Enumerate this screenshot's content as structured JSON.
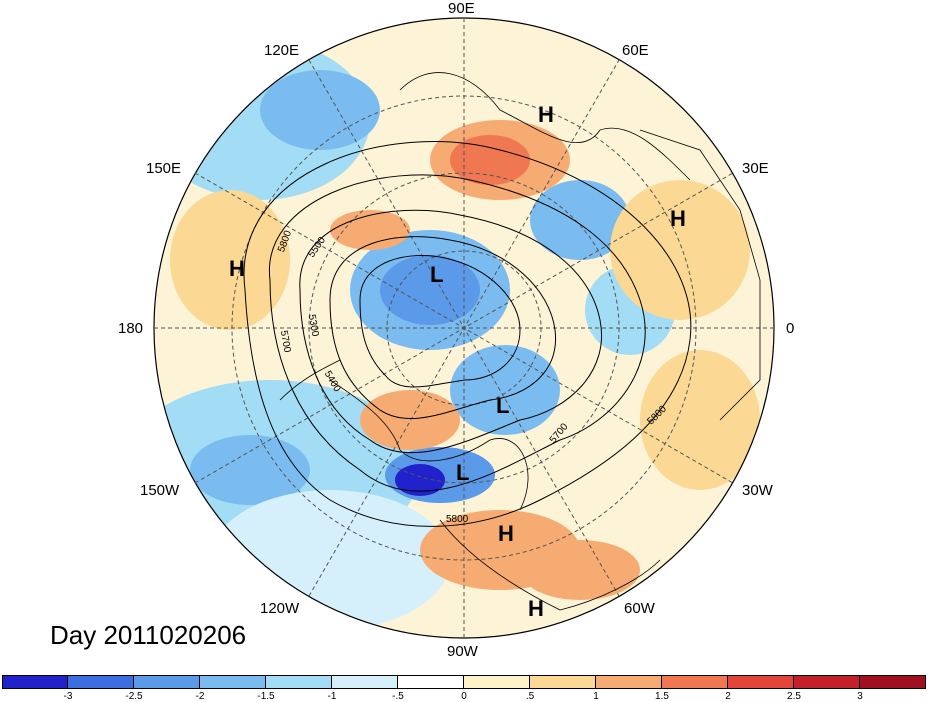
{
  "title": "Day 2011020206",
  "longitude_labels": [
    "90E",
    "60E",
    "120E",
    "30E",
    "150E",
    "180",
    "0",
    "150W",
    "30W",
    "120W",
    "60W",
    "90W"
  ],
  "pressure_systems": [
    "H",
    "H",
    "H",
    "L",
    "L",
    "L",
    "H",
    "H"
  ],
  "contour_labels": [
    "5800",
    "5500",
    "5300",
    "5700",
    "5400",
    "5700",
    "5800",
    "5800"
  ],
  "colorbar": {
    "ticks": [
      "-3",
      "-2.5",
      "-2",
      "-1.5",
      "-1",
      "-.5",
      "0",
      ".5",
      "1",
      "1.5",
      "2",
      "2.5",
      "3"
    ],
    "colors": [
      "#2222cc",
      "#3b6fe0",
      "#5a9ae8",
      "#7bbcf0",
      "#a2dcf5",
      "#d6f0fb",
      "#ffffff",
      "#fdf3c8",
      "#fbd894",
      "#f6ab72",
      "#ef7752",
      "#e24438",
      "#c4202a",
      "#a01020"
    ]
  }
}
